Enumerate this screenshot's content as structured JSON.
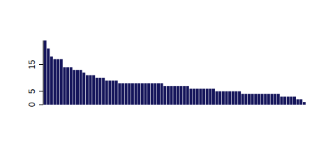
{
  "chart_data": {
    "type": "bar",
    "values": [
      24,
      21,
      18,
      17,
      17,
      17,
      14,
      14,
      14,
      13,
      13,
      13,
      12,
      11,
      11,
      11,
      10,
      10,
      10,
      9,
      9,
      9,
      9,
      8,
      8,
      8,
      8,
      8,
      8,
      8,
      8,
      8,
      8,
      8,
      8,
      8,
      8,
      7,
      7,
      7,
      7,
      7,
      7,
      7,
      7,
      6,
      6,
      6,
      6,
      6,
      6,
      6,
      6,
      5,
      5,
      5,
      5,
      5,
      5,
      5,
      5,
      4,
      4,
      4,
      4,
      4,
      4,
      4,
      4,
      4,
      4,
      4,
      4,
      3,
      3,
      3,
      3,
      3,
      2,
      2,
      1
    ],
    "color": "#14145a",
    "ylim": [
      0,
      24
    ],
    "yticks": [
      0,
      5,
      15
    ],
    "grid": false,
    "tick_labels": "y"
  }
}
